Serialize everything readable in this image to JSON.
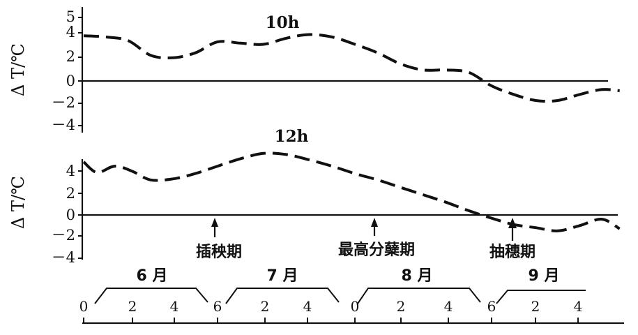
{
  "chart_data": [
    {
      "type": "line",
      "ylabel": "Δ T/℃",
      "yticks": [
        "5",
        "4",
        "2",
        "0",
        "－2",
        "－4"
      ],
      "series": [
        {
          "name": "10h",
          "x": [
            "6-01",
            "6-06",
            "6-11",
            "6-16",
            "6-21",
            "6-26",
            "7-01",
            "7-06",
            "7-11",
            "7-16",
            "7-21",
            "7-26",
            "8-01",
            "8-06",
            "8-11",
            "8-16",
            "8-21",
            "8-26",
            "9-01",
            "9-06",
            "9-11",
            "9-16",
            "9-21",
            "9-26",
            "9-30"
          ],
          "values": [
            3.7,
            3.6,
            3.3,
            2.1,
            1.9,
            2.3,
            3.2,
            3.1,
            3.0,
            3.5,
            3.8,
            3.6,
            3.0,
            2.3,
            1.4,
            0.9,
            0.9,
            0.7,
            -0.4,
            -1.1,
            -1.6,
            -1.6,
            -1.1,
            -0.7,
            -0.8
          ]
        }
      ]
    },
    {
      "type": "line",
      "ylabel": "Δ T/℃",
      "yticks": [
        "4",
        "2",
        "0",
        "－2",
        "－4"
      ],
      "series": [
        {
          "name": "12h",
          "x": [
            "6-01",
            "6-04",
            "6-08",
            "6-12",
            "6-16",
            "6-21",
            "6-26",
            "7-01",
            "7-06",
            "7-11",
            "7-16",
            "7-21",
            "7-26",
            "8-01",
            "8-06",
            "8-11",
            "8-16",
            "8-21",
            "8-26",
            "9-01",
            "9-06",
            "9-11",
            "9-16",
            "9-21",
            "9-26",
            "9-30"
          ],
          "values": [
            5.0,
            4.0,
            4.6,
            4.1,
            3.3,
            3.4,
            3.9,
            4.6,
            5.3,
            5.8,
            5.7,
            5.2,
            4.6,
            3.9,
            3.3,
            2.6,
            1.9,
            1.2,
            0.4,
            -0.3,
            -0.9,
            -1.2,
            -1.5,
            -1.0,
            -0.4,
            -1.3
          ]
        }
      ]
    }
  ],
  "annotations": [
    "插秧期",
    "最高分蘖期",
    "抽穗期"
  ],
  "months": [
    "6 月",
    "7 月",
    "8 月",
    "9 月"
  ],
  "day_ticks": [
    [
      "0",
      "2",
      "4"
    ],
    [
      "6",
      "2",
      "4"
    ],
    [
      "0",
      "2",
      "4"
    ],
    [
      "6",
      "2",
      "4"
    ]
  ]
}
